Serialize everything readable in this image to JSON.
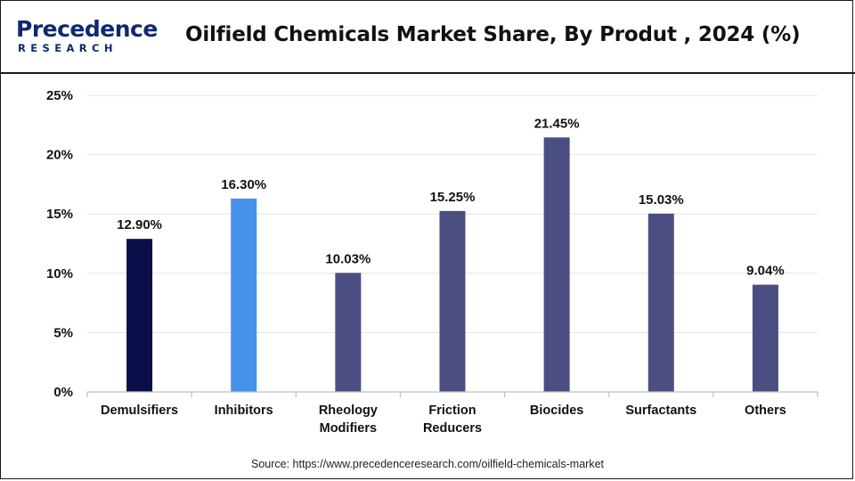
{
  "header": {
    "logo_main": "Precedence",
    "logo_sub": "RESEARCH",
    "title": "Oilfield Chemicals Market Share, By Produt , 2024 (%)"
  },
  "footer": {
    "source": "Source: https://www.precedenceresearch.com/oilfield-chemicals-market"
  },
  "chart_data": {
    "type": "bar",
    "categories": [
      [
        "Demulsifiers"
      ],
      [
        "Inhibitors"
      ],
      [
        "Rheology",
        "Modifiers"
      ],
      [
        "Friction",
        "Reducers"
      ],
      [
        "Biocides"
      ],
      [
        "Surfactants"
      ],
      [
        "Others"
      ]
    ],
    "values": [
      12.9,
      16.3,
      10.03,
      15.25,
      21.45,
      15.03,
      9.04
    ],
    "data_labels": [
      "12.90%",
      "16.30%",
      "10.03%",
      "15.25%",
      "21.45%",
      "15.03%",
      "9.04%"
    ],
    "bar_colors": [
      "#0a0f4a",
      "#4592ea",
      "#4a4e82",
      "#4a4e82",
      "#4a4e82",
      "#4a4e82",
      "#4a4e82"
    ],
    "ylim": [
      0,
      25
    ],
    "yticks": [
      0,
      5,
      10,
      15,
      20,
      25
    ],
    "ytick_labels": [
      "0%",
      "5%",
      "10%",
      "15%",
      "20%",
      "25%"
    ],
    "grid": true,
    "legend": "none",
    "xlabel": "",
    "ylabel": ""
  }
}
